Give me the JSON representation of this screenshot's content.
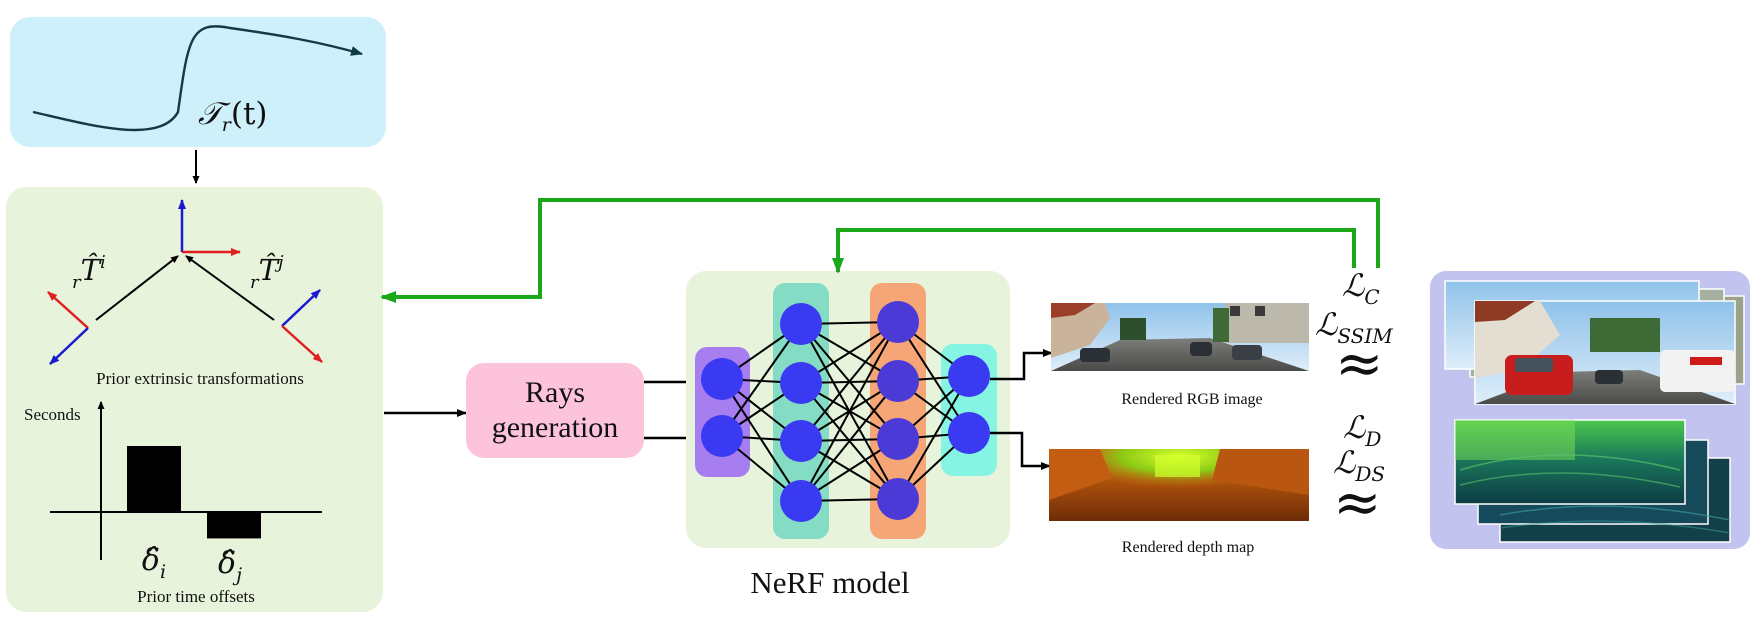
{
  "trajectory": {
    "label": "𝒯",
    "sub": "r",
    "arg": "(t)"
  },
  "prior_extrinsic": {
    "caption": "Prior extrinsic transformations",
    "left_transform": {
      "pre": "r",
      "main": "T̂",
      "sup": "i"
    },
    "right_transform": {
      "pre": "r",
      "main": "T̂",
      "sup": "j"
    }
  },
  "prior_time": {
    "caption": "Prior time offsets",
    "axis_label": "Seconds",
    "delta_i": {
      "main": "δ̂",
      "sub": "i"
    },
    "delta_j": {
      "main": "δ̂",
      "sub": "j"
    },
    "bars": [
      {
        "name": "delta-i",
        "value": 1.0
      },
      {
        "name": "delta-j",
        "value": -0.4
      }
    ]
  },
  "rays": {
    "line1": "Rays",
    "line2": "generation"
  },
  "nerf": {
    "caption": "NeRF model",
    "layers": [
      2,
      4,
      4,
      2
    ]
  },
  "outputs": {
    "rgb_caption": "Rendered RGB image",
    "depth_caption": "Rendered depth map"
  },
  "losses": {
    "color_a": {
      "main": "ℒ",
      "sub": "C"
    },
    "color_b": {
      "main": "ℒ",
      "sub": "SSIM"
    },
    "depth_a": {
      "main": "ℒ",
      "sub": "D"
    },
    "depth_b": {
      "main": "ℒ",
      "sub": "DS"
    },
    "approx_symbol": "≈"
  },
  "colors": {
    "trajectory_bg": "#cdf0fa",
    "panel_green": "#e8f3dc",
    "rays_box": "#fcc3da",
    "gt_bg": "#c2c3ef",
    "feedback_arrow": "#1aa81a",
    "node": "#3a3af2",
    "input_layer": "#a77ef0",
    "hidden1": "#85dcc4",
    "hidden2": "#f6a676",
    "output_layer": "#86f4e2",
    "axis_red": "#e02020",
    "axis_blue": "#1a1ad0"
  }
}
